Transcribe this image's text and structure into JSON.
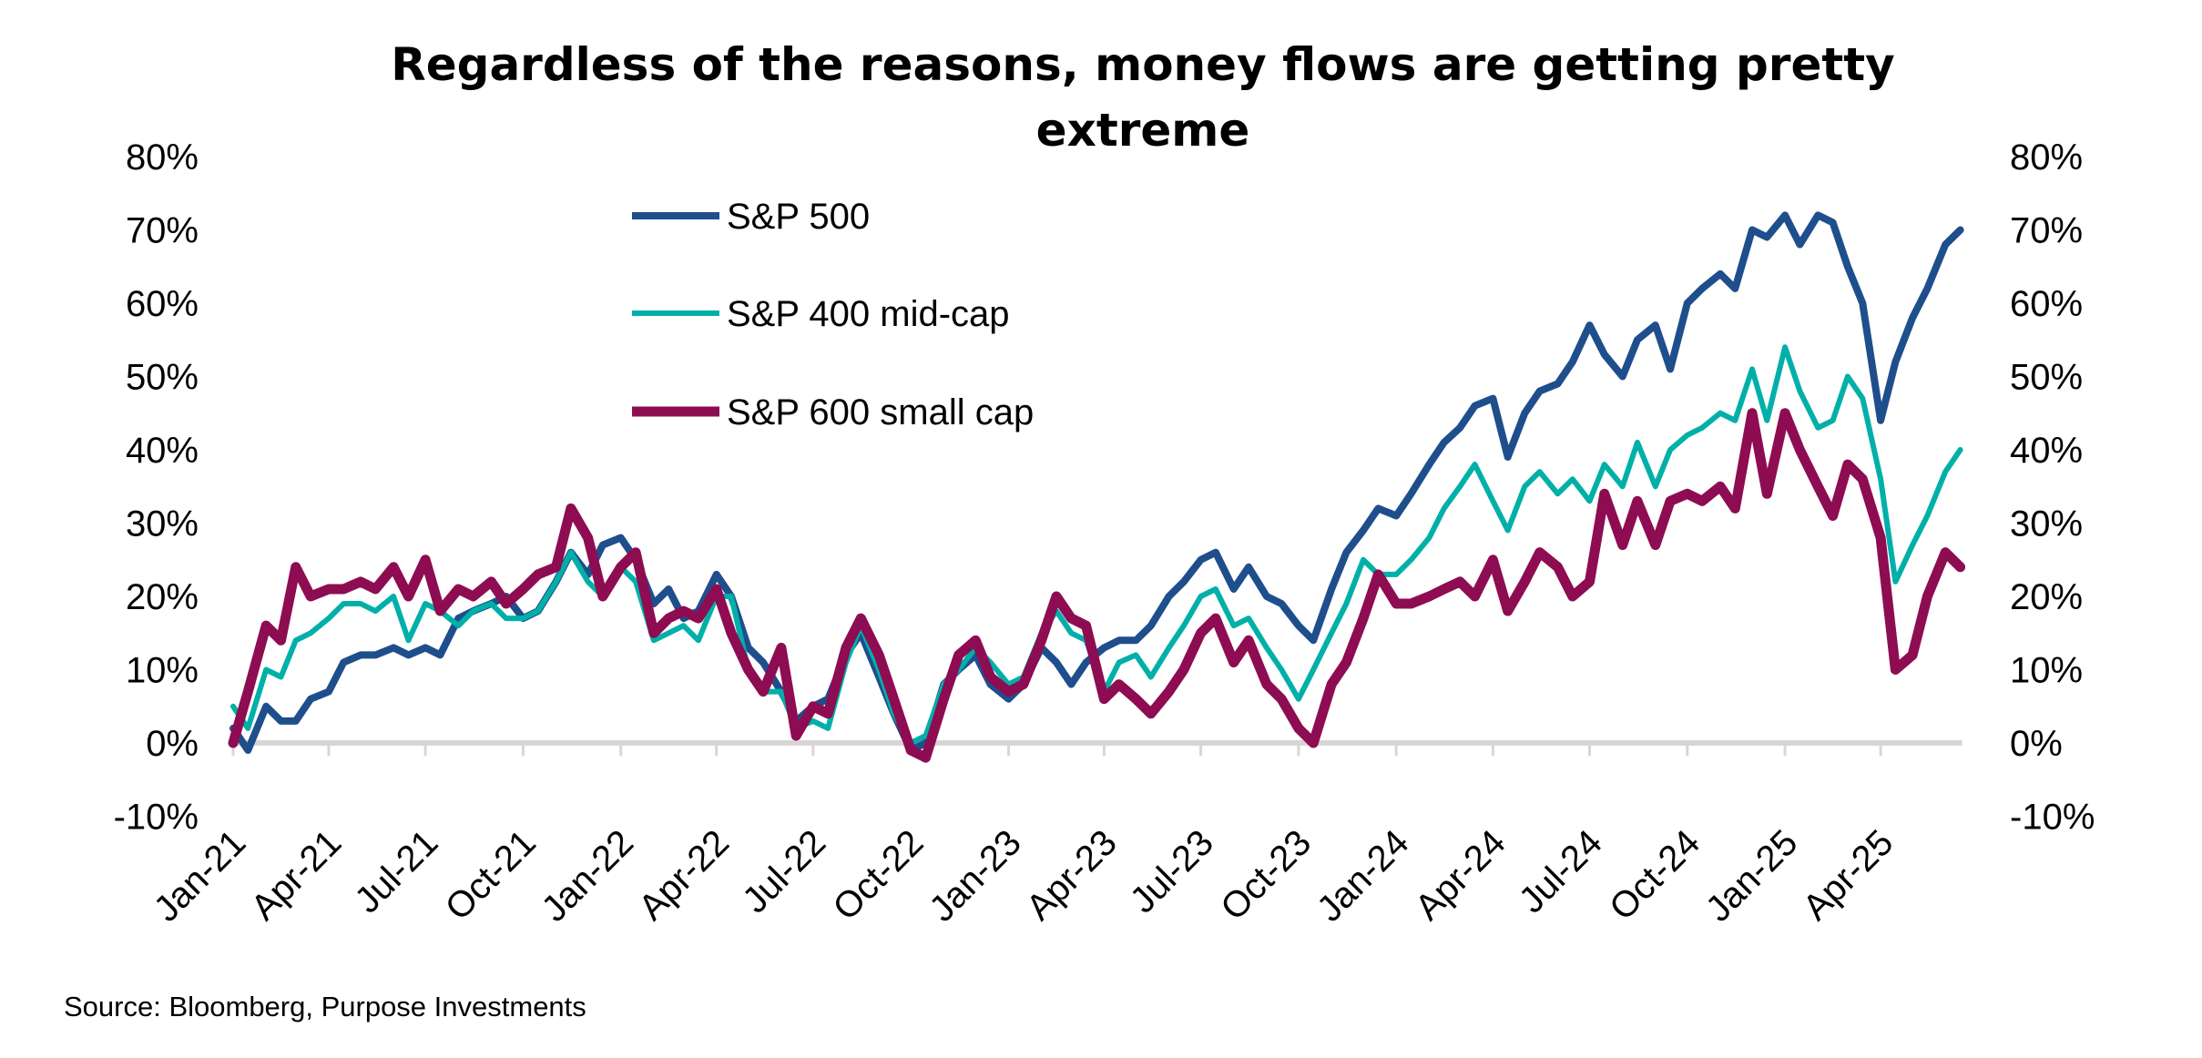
{
  "chart_data": {
    "type": "line",
    "title": "Regardless of the reasons, money flows are getting pretty extreme",
    "title_lines": [
      "Regardless of the reasons, money flows are getting pretty",
      "extreme"
    ],
    "source": "Source: Bloomberg, Purpose Investments",
    "xlabel": "",
    "ylabel": "",
    "ylim": [
      -10,
      80
    ],
    "y_ticks": [
      "-10%",
      "0%",
      "10%",
      "20%",
      "30%",
      "40%",
      "50%",
      "60%",
      "70%",
      "80%"
    ],
    "y_tick_values": [
      -10,
      0,
      10,
      20,
      30,
      40,
      50,
      60,
      70,
      80
    ],
    "secondary_y_ticks": [
      "-10%",
      "0%",
      "10%",
      "20%",
      "30%",
      "40%",
      "50%",
      "60%",
      "70%",
      "80%"
    ],
    "x_ticks": [
      "Jan-21",
      "Apr-21",
      "Jul-21",
      "Oct-21",
      "Jan-22",
      "Apr-22",
      "Jul-22",
      "Oct-22",
      "Jan-23",
      "Apr-23",
      "Jul-23",
      "Oct-23",
      "Jan-24",
      "Apr-24",
      "Jul-24",
      "Oct-24",
      "Jan-25",
      "Apr-25"
    ],
    "x_tick_dates": [
      "2021-01-01",
      "2021-04-01",
      "2021-07-01",
      "2021-10-01",
      "2022-01-01",
      "2022-04-01",
      "2022-07-01",
      "2022-10-01",
      "2023-01-01",
      "2023-04-01",
      "2023-07-01",
      "2023-10-01",
      "2024-01-01",
      "2024-04-01",
      "2024-07-01",
      "2024-10-01",
      "2025-01-01",
      "2025-04-01"
    ],
    "grid": false,
    "legend_position": "top-left",
    "x": [
      "2021-01-01",
      "2021-01-15",
      "2021-02-01",
      "2021-02-15",
      "2021-03-01",
      "2021-03-15",
      "2021-04-01",
      "2021-04-15",
      "2021-05-01",
      "2021-05-15",
      "2021-06-01",
      "2021-06-15",
      "2021-07-01",
      "2021-07-15",
      "2021-08-01",
      "2021-08-15",
      "2021-09-01",
      "2021-09-15",
      "2021-10-01",
      "2021-10-15",
      "2021-11-01",
      "2021-11-15",
      "2021-12-01",
      "2021-12-15",
      "2022-01-01",
      "2022-01-15",
      "2022-02-01",
      "2022-02-15",
      "2022-03-01",
      "2022-03-15",
      "2022-04-01",
      "2022-04-15",
      "2022-05-01",
      "2022-05-15",
      "2022-06-01",
      "2022-06-15",
      "2022-07-01",
      "2022-07-15",
      "2022-08-01",
      "2022-08-15",
      "2022-09-01",
      "2022-09-15",
      "2022-10-01",
      "2022-10-15",
      "2022-11-01",
      "2022-11-15",
      "2022-12-01",
      "2022-12-15",
      "2023-01-01",
      "2023-01-15",
      "2023-02-01",
      "2023-02-15",
      "2023-03-01",
      "2023-03-15",
      "2023-04-01",
      "2023-04-15",
      "2023-05-01",
      "2023-05-15",
      "2023-06-01",
      "2023-06-15",
      "2023-07-01",
      "2023-07-15",
      "2023-08-01",
      "2023-08-15",
      "2023-09-01",
      "2023-09-15",
      "2023-10-01",
      "2023-10-15",
      "2023-11-01",
      "2023-11-15",
      "2023-12-01",
      "2023-12-15",
      "2024-01-01",
      "2024-01-15",
      "2024-02-01",
      "2024-02-15",
      "2024-03-01",
      "2024-03-15",
      "2024-04-01",
      "2024-04-15",
      "2024-05-01",
      "2024-05-15",
      "2024-06-01",
      "2024-06-15",
      "2024-07-01",
      "2024-07-15",
      "2024-08-01",
      "2024-08-15",
      "2024-09-01",
      "2024-09-15",
      "2024-10-01",
      "2024-10-15",
      "2024-11-01",
      "2024-11-15",
      "2024-12-01",
      "2024-12-15",
      "2025-01-01",
      "2025-01-15",
      "2025-02-01",
      "2025-02-15",
      "2025-03-01",
      "2025-03-15",
      "2025-04-01",
      "2025-04-15",
      "2025-05-01",
      "2025-05-15",
      "2025-06-01",
      "2025-06-15"
    ],
    "series": [
      {
        "name": "S&P 500",
        "color": "#1F4E8C",
        "values": [
          2,
          -1,
          5,
          3,
          3,
          6,
          7,
          11,
          12,
          12,
          13,
          12,
          13,
          12,
          17,
          18,
          19,
          20,
          17,
          18,
          22,
          26,
          23,
          27,
          28,
          25,
          19,
          21,
          17,
          18,
          23,
          20,
          13,
          11,
          7,
          3,
          5,
          6,
          12,
          15,
          9,
          4,
          -1,
          0,
          8,
          10,
          12,
          8,
          6,
          8,
          13,
          11,
          8,
          11,
          13,
          14,
          14,
          16,
          20,
          22,
          25,
          26,
          21,
          24,
          20,
          19,
          16,
          14,
          21,
          26,
          29,
          32,
          31,
          34,
          38,
          41,
          43,
          46,
          47,
          39,
          45,
          48,
          49,
          52,
          57,
          53,
          50,
          55,
          57,
          51,
          60,
          62,
          64,
          62,
          70,
          69,
          72,
          68,
          72,
          71,
          65,
          60,
          44,
          52,
          58,
          62,
          68,
          70
        ]
      },
      {
        "name": "S&P 400 mid-cap",
        "color": "#00B0A8",
        "values": [
          5,
          2,
          10,
          9,
          14,
          15,
          17,
          19,
          19,
          18,
          20,
          14,
          19,
          18,
          16,
          18,
          19,
          17,
          17,
          18,
          22,
          26,
          22,
          20,
          24,
          22,
          14,
          15,
          16,
          14,
          20,
          20,
          10,
          7,
          7,
          2,
          3,
          2,
          11,
          16,
          10,
          4,
          0,
          1,
          8,
          10,
          13,
          11,
          8,
          9,
          15,
          18,
          15,
          14,
          7,
          11,
          12,
          9,
          13,
          16,
          20,
          21,
          16,
          17,
          13,
          10,
          6,
          10,
          15,
          19,
          25,
          23,
          23,
          25,
          28,
          32,
          35,
          38,
          33,
          29,
          35,
          37,
          34,
          36,
          33,
          38,
          35,
          41,
          35,
          40,
          42,
          43,
          45,
          44,
          51,
          44,
          54,
          48,
          43,
          44,
          50,
          47,
          36,
          22,
          27,
          31,
          37,
          40
        ]
      },
      {
        "name": "S&P 600 small cap",
        "color": "#8E0C52",
        "values": [
          0,
          7,
          16,
          14,
          24,
          20,
          21,
          21,
          22,
          21,
          24,
          20,
          25,
          18,
          21,
          20,
          22,
          19,
          21,
          23,
          24,
          32,
          28,
          20,
          24,
          26,
          15,
          17,
          18,
          17,
          21,
          15,
          10,
          7,
          13,
          1,
          5,
          4,
          13,
          17,
          12,
          6,
          -1,
          -2,
          6,
          12,
          14,
          9,
          7,
          8,
          14,
          20,
          17,
          16,
          6,
          8,
          6,
          4,
          7,
          10,
          15,
          17,
          11,
          14,
          8,
          6,
          2,
          0,
          8,
          11,
          17,
          23,
          19,
          19,
          20,
          21,
          22,
          20,
          25,
          18,
          22,
          26,
          24,
          20,
          22,
          34,
          27,
          33,
          27,
          33,
          34,
          33,
          35,
          32,
          45,
          34,
          45,
          40,
          35,
          31,
          38,
          36,
          28,
          10,
          12,
          20,
          26,
          24
        ]
      }
    ]
  }
}
